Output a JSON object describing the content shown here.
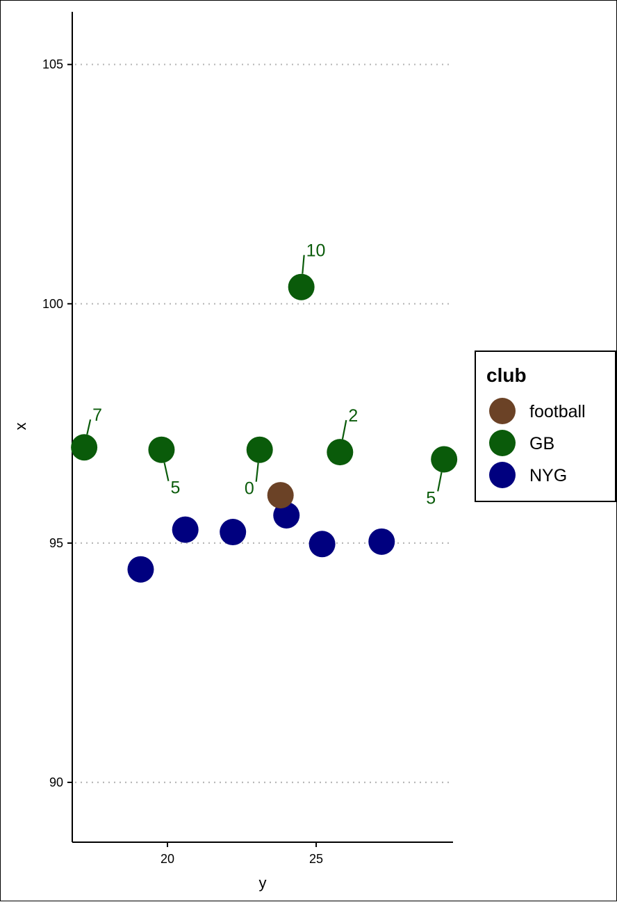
{
  "chart_data": {
    "type": "scatter",
    "xlabel": "y",
    "ylabel": "x",
    "xlim": [
      16.8,
      29.6
    ],
    "ylim": [
      88.75,
      106.1
    ],
    "x_ticks": [
      20,
      25
    ],
    "y_ticks": [
      90,
      95,
      100,
      105
    ],
    "grid": "horizontal dotted",
    "legend": {
      "title": "club",
      "position": "right",
      "entries": [
        {
          "name": "football",
          "color": "#6B4226"
        },
        {
          "name": "GB",
          "color": "#0A5B0A"
        },
        {
          "name": "NYG",
          "color": "#00007F"
        }
      ]
    },
    "series": [
      {
        "name": "GB",
        "color": "#0A5B0A",
        "points": [
          {
            "x": 17.2,
            "y": 97.0,
            "label": "7"
          },
          {
            "x": 19.8,
            "y": 96.95,
            "label": "5"
          },
          {
            "x": 23.1,
            "y": 96.95,
            "label": "0"
          },
          {
            "x": 24.5,
            "y": 100.35,
            "label": "10"
          },
          {
            "x": 25.8,
            "y": 96.9,
            "label": "2"
          },
          {
            "x": 29.3,
            "y": 96.75,
            "label": "5"
          }
        ]
      },
      {
        "name": "NYG",
        "color": "#00007F",
        "points": [
          {
            "x": 19.1,
            "y": 94.45
          },
          {
            "x": 20.6,
            "y": 95.28
          },
          {
            "x": 22.2,
            "y": 95.23
          },
          {
            "x": 24.0,
            "y": 95.58
          },
          {
            "x": 25.2,
            "y": 94.98
          },
          {
            "x": 27.2,
            "y": 95.03
          }
        ]
      },
      {
        "name": "football",
        "color": "#6B4226",
        "points": [
          {
            "x": 23.8,
            "y": 96.0
          }
        ]
      }
    ]
  }
}
